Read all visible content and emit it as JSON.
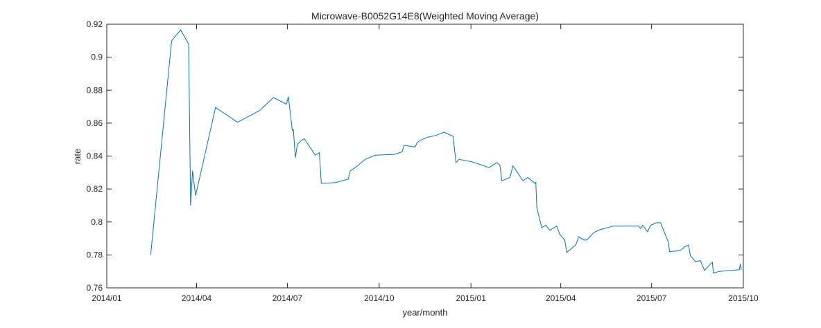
{
  "chart_data": {
    "type": "line",
    "title": "Microwave-B0052G14E8(Weighted Moving Average)",
    "xlabel": "year/month",
    "ylabel": "rate",
    "xlim": [
      "2014-01-01",
      "2015-10-01"
    ],
    "ylim": [
      0.76,
      0.92
    ],
    "grid": false,
    "legend": "none",
    "line_color": "#0072BD",
    "xticks": [
      {
        "date": "2014-01-01",
        "label": "2014/01"
      },
      {
        "date": "2014-04-01",
        "label": "2014/04"
      },
      {
        "date": "2014-07-01",
        "label": "2014/07"
      },
      {
        "date": "2014-10-01",
        "label": "2014/10"
      },
      {
        "date": "2015-01-01",
        "label": "2015/01"
      },
      {
        "date": "2015-04-01",
        "label": "2015/04"
      },
      {
        "date": "2015-07-01",
        "label": "2015/07"
      },
      {
        "date": "2015-10-01",
        "label": "2015/10"
      }
    ],
    "yticks": [
      {
        "value": 0.76,
        "label": "0.76"
      },
      {
        "value": 0.78,
        "label": "0.78"
      },
      {
        "value": 0.8,
        "label": "0.8"
      },
      {
        "value": 0.82,
        "label": "0.82"
      },
      {
        "value": 0.84,
        "label": "0.84"
      },
      {
        "value": 0.86,
        "label": "0.86"
      },
      {
        "value": 0.88,
        "label": "0.88"
      },
      {
        "value": 0.9,
        "label": "0.9"
      },
      {
        "value": 0.92,
        "label": "0.92"
      }
    ],
    "series": [
      {
        "points": [
          [
            "2014-02-14",
            0.78
          ],
          [
            "2014-03-07",
            0.91
          ],
          [
            "2014-03-16",
            0.9165
          ],
          [
            "2014-03-24",
            0.908
          ],
          [
            "2014-03-26",
            0.81
          ],
          [
            "2014-03-28",
            0.831
          ],
          [
            "2014-03-31",
            0.816
          ],
          [
            "2014-04-20",
            0.8695
          ],
          [
            "2014-05-12",
            0.8605
          ],
          [
            "2014-06-03",
            0.8675
          ],
          [
            "2014-06-17",
            0.8755
          ],
          [
            "2014-06-30",
            0.8715
          ],
          [
            "2014-07-02",
            0.876
          ],
          [
            "2014-07-06",
            0.8555
          ],
          [
            "2014-07-07",
            0.856
          ],
          [
            "2014-07-09",
            0.839
          ],
          [
            "2014-07-11",
            0.847
          ],
          [
            "2014-07-15",
            0.8495
          ],
          [
            "2014-07-18",
            0.8505
          ],
          [
            "2014-07-29",
            0.8405
          ],
          [
            "2014-08-02",
            0.842
          ],
          [
            "2014-08-04",
            0.8235
          ],
          [
            "2014-08-10",
            0.8235
          ],
          [
            "2014-08-19",
            0.824
          ],
          [
            "2014-08-31",
            0.826
          ],
          [
            "2014-09-02",
            0.831
          ],
          [
            "2014-09-07",
            0.833
          ],
          [
            "2014-09-12",
            0.8355
          ],
          [
            "2014-09-17",
            0.838
          ],
          [
            "2014-09-27",
            0.8405
          ],
          [
            "2014-10-16",
            0.841
          ],
          [
            "2014-10-24",
            0.8425
          ],
          [
            "2014-10-26",
            0.8465
          ],
          [
            "2014-11-06",
            0.8455
          ],
          [
            "2014-11-08",
            0.848
          ],
          [
            "2014-11-11",
            0.8495
          ],
          [
            "2014-11-19",
            0.8515
          ],
          [
            "2014-11-27",
            0.8525
          ],
          [
            "2014-12-05",
            0.8545
          ],
          [
            "2014-12-14",
            0.852
          ],
          [
            "2014-12-17",
            0.836
          ],
          [
            "2014-12-20",
            0.838
          ],
          [
            "2015-01-02",
            0.8365
          ],
          [
            "2015-01-12",
            0.8345
          ],
          [
            "2015-01-19",
            0.833
          ],
          [
            "2015-01-27",
            0.836
          ],
          [
            "2015-01-30",
            0.8345
          ],
          [
            "2015-02-01",
            0.825
          ],
          [
            "2015-02-09",
            0.827
          ],
          [
            "2015-02-12",
            0.834
          ],
          [
            "2015-02-15",
            0.8315
          ],
          [
            "2015-02-22",
            0.825
          ],
          [
            "2015-02-27",
            0.827
          ],
          [
            "2015-03-06",
            0.8235
          ],
          [
            "2015-03-07",
            0.824
          ],
          [
            "2015-03-08",
            0.8085
          ],
          [
            "2015-03-13",
            0.7965
          ],
          [
            "2015-03-17",
            0.798
          ],
          [
            "2015-03-21",
            0.795
          ],
          [
            "2015-03-28",
            0.7975
          ],
          [
            "2015-03-31",
            0.7925
          ],
          [
            "2015-04-05",
            0.789
          ],
          [
            "2015-04-07",
            0.7815
          ],
          [
            "2015-04-16",
            0.786
          ],
          [
            "2015-04-19",
            0.791
          ],
          [
            "2015-04-24",
            0.789
          ],
          [
            "2015-04-27",
            0.789
          ],
          [
            "2015-05-04",
            0.7935
          ],
          [
            "2015-05-11",
            0.7955
          ],
          [
            "2015-05-24",
            0.7975
          ],
          [
            "2015-06-18",
            0.7975
          ],
          [
            "2015-06-20",
            0.796
          ],
          [
            "2015-06-22",
            0.798
          ],
          [
            "2015-06-27",
            0.794
          ],
          [
            "2015-06-30",
            0.798
          ],
          [
            "2015-07-06",
            0.7995
          ],
          [
            "2015-07-10",
            0.7995
          ],
          [
            "2015-07-18",
            0.7875
          ],
          [
            "2015-07-19",
            0.782
          ],
          [
            "2015-07-29",
            0.7825
          ],
          [
            "2015-08-02",
            0.784
          ],
          [
            "2015-08-03",
            0.785
          ],
          [
            "2015-08-07",
            0.786
          ],
          [
            "2015-08-09",
            0.7795
          ],
          [
            "2015-08-14",
            0.776
          ],
          [
            "2015-08-19",
            0.7765
          ],
          [
            "2015-08-23",
            0.7705
          ],
          [
            "2015-08-29",
            0.7745
          ],
          [
            "2015-08-31",
            0.7755
          ],
          [
            "2015-09-01",
            0.769
          ],
          [
            "2015-09-07",
            0.77
          ],
          [
            "2015-09-27",
            0.771
          ],
          [
            "2015-09-28",
            0.7745
          ],
          [
            "2015-09-29",
            0.771
          ]
        ]
      }
    ]
  }
}
